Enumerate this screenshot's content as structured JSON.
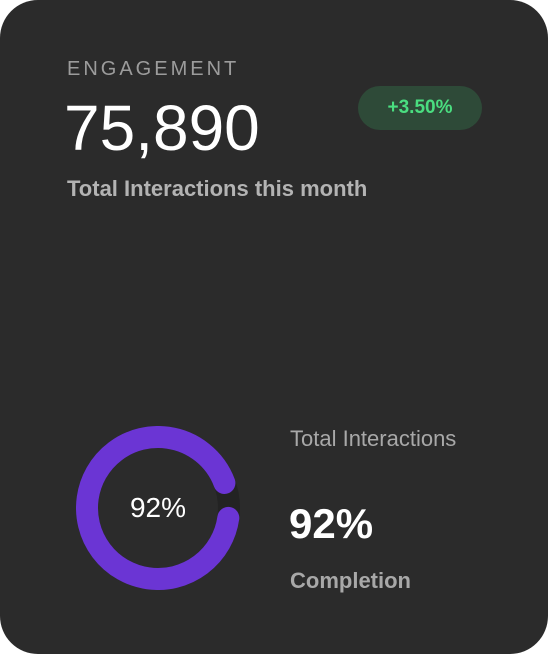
{
  "card": {
    "eyebrow": "ENGAGEMENT",
    "value": "75,890",
    "change_badge": "+3.50%",
    "subtitle": "Total Interactions this month"
  },
  "progress": {
    "percent": 92,
    "ring_label": "92%",
    "stat_label": "Total Interactions",
    "stat_value": "92%",
    "stat_caption": "Completion"
  },
  "colors": {
    "card_background": "#2b2b2b",
    "ring_fill": "#6b35d4",
    "ring_track": "#232323",
    "badge_background": "#2e4a38",
    "badge_text": "#4ade80"
  }
}
